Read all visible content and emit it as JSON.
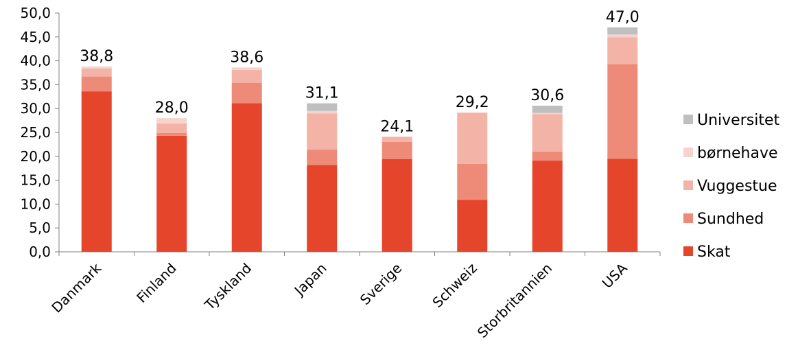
{
  "chart_data": {
    "type": "bar",
    "stacked": true,
    "categories": [
      "Danmark",
      "Finland",
      "Tyskland",
      "Japan",
      "Sverige",
      "Schweiz",
      "Storbritannien",
      "USA"
    ],
    "series": [
      {
        "name": "Skat",
        "color": "#e5452a",
        "values": [
          33.6,
          24.3,
          31.1,
          18.2,
          19.4,
          10.9,
          19.1,
          19.5
        ]
      },
      {
        "name": "Sundhed",
        "color": "#ee8b78",
        "values": [
          3.1,
          0.6,
          4.3,
          3.2,
          3.6,
          7.5,
          1.9,
          19.8
        ]
      },
      {
        "name": "Vuggestue",
        "color": "#f4b3a7",
        "values": [
          1.7,
          2.0,
          2.7,
          7.6,
          1.1,
          10.7,
          7.8,
          5.6
        ]
      },
      {
        "name": "børnehave",
        "color": "#f7d3cd",
        "values": [
          0.4,
          1.1,
          0.5,
          0.5,
          0.0,
          0.1,
          0.3,
          0.6
        ]
      },
      {
        "name": "Universitet",
        "color": "#bfbfbf",
        "values": [
          0.0,
          0.0,
          0.0,
          1.6,
          0.0,
          0.0,
          1.5,
          1.5
        ]
      }
    ],
    "totals": [
      "38,8",
      "28,0",
      "38,6",
      "31,1",
      "24,1",
      "29,2",
      "30,6",
      "47,0"
    ],
    "y_ticks": [
      "0,0",
      "5,0",
      "10,0",
      "15,0",
      "20,0",
      "25,0",
      "30,0",
      "35,0",
      "40,0",
      "45,0",
      "50,0"
    ],
    "ylim": [
      0,
      50
    ],
    "grid": false,
    "legend_position": "right",
    "legend_order": [
      "Universitet",
      "børnehave",
      "Vuggestue",
      "Sundhed",
      "Skat"
    ]
  }
}
